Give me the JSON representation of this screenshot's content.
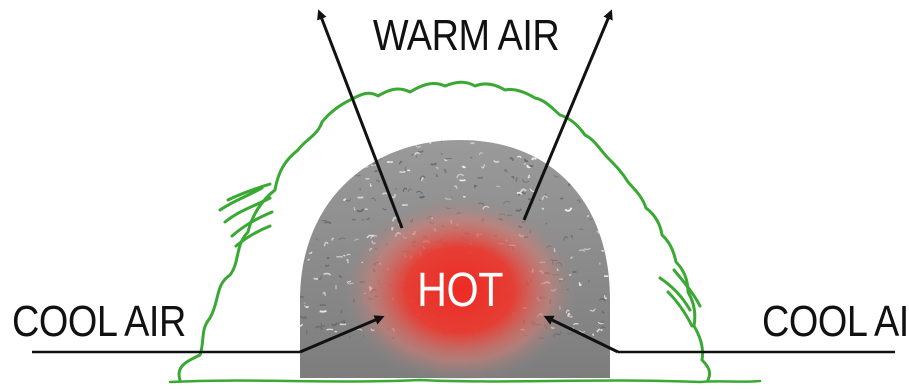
{
  "labels": {
    "warm_air": "WARM AIR",
    "cool_air_left": "COOL AIR",
    "cool_air_right": "COOL AIR",
    "hot": "HOT"
  },
  "colors": {
    "outline_green": "#3aa934",
    "pile_gray": "#8a8a8a",
    "hot_core": "#e8352c",
    "arrow": "#111111",
    "background": "#ffffff"
  }
}
